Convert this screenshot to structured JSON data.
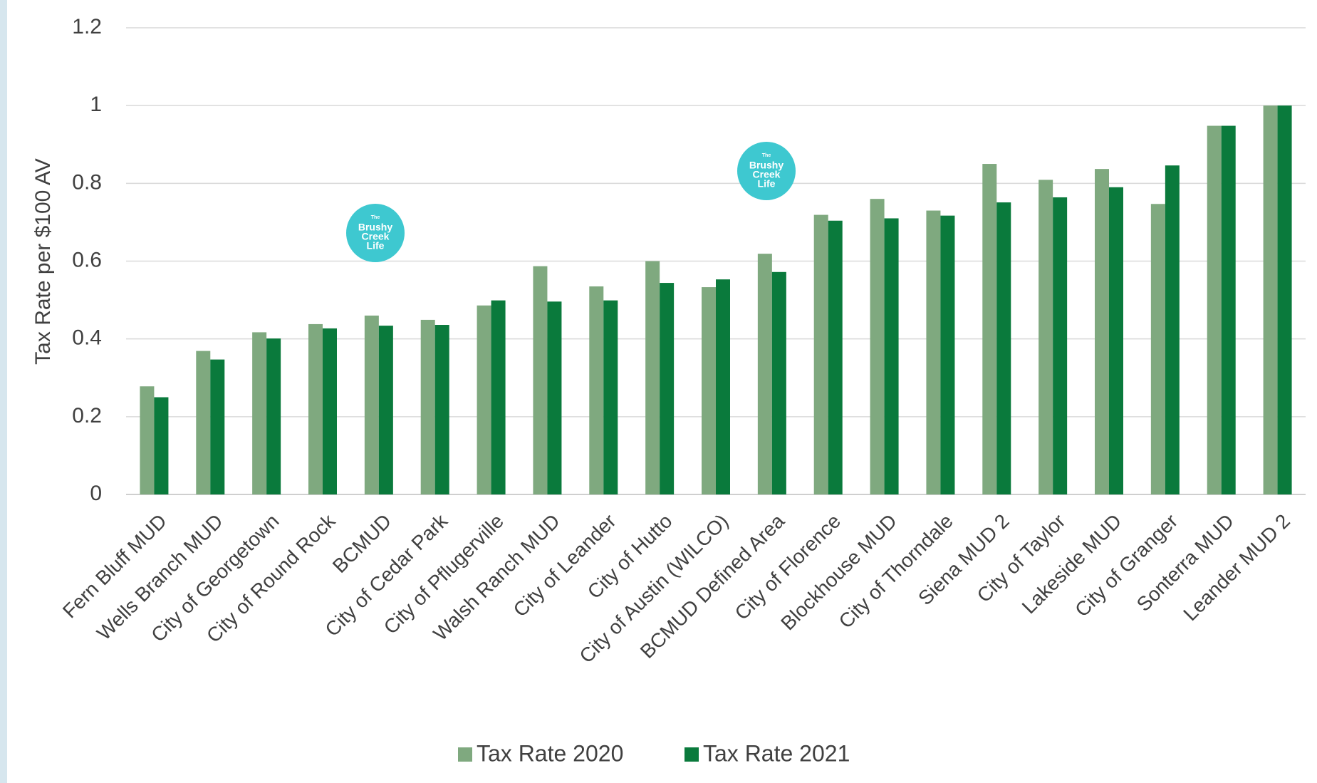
{
  "chart_data": {
    "type": "bar",
    "ylabel": "Tax Rate per $100 AV",
    "categories": [
      "Fern Bluff MUD",
      "Wells Branch MUD",
      "City of Georgetown",
      "City of Round Rock",
      "BCMUD",
      "City of Cedar Park",
      "City of Pflugerville",
      "Walsh Ranch MUD",
      "City of Leander",
      "City of Hutto",
      "City of Austin (WILCO)",
      "BCMUD Defined Area",
      "City of Florence",
      "Blockhouse MUD",
      "City of Thorndale",
      "Siena MUD 2",
      "City of Taylor",
      "Lakeside MUD",
      "City of Granger",
      "Sonterra MUD",
      "Leander MUD 2"
    ],
    "series": [
      {
        "name": "Tax Rate 2020",
        "color": "#7fa97f",
        "values": [
          0.278,
          0.369,
          0.417,
          0.438,
          0.46,
          0.449,
          0.486,
          0.587,
          0.535,
          0.6,
          0.533,
          0.619,
          0.719,
          0.76,
          0.73,
          0.85,
          0.809,
          0.837,
          0.747,
          0.948,
          1.0
        ]
      },
      {
        "name": "Tax Rate 2021",
        "color": "#0a7a3c",
        "values": [
          0.25,
          0.347,
          0.401,
          0.427,
          0.434,
          0.436,
          0.499,
          0.496,
          0.499,
          0.544,
          0.553,
          0.572,
          0.704,
          0.71,
          0.717,
          0.751,
          0.764,
          0.79,
          0.846,
          0.948,
          1.0
        ]
      }
    ],
    "ylim": [
      0,
      1.2
    ],
    "yticks": [
      0,
      0.2,
      0.4,
      0.6,
      0.8,
      1,
      1.2
    ],
    "grid": true,
    "legend": "bottom",
    "logo_text": [
      "The",
      "Brushy",
      "Creek",
      "Life"
    ]
  }
}
